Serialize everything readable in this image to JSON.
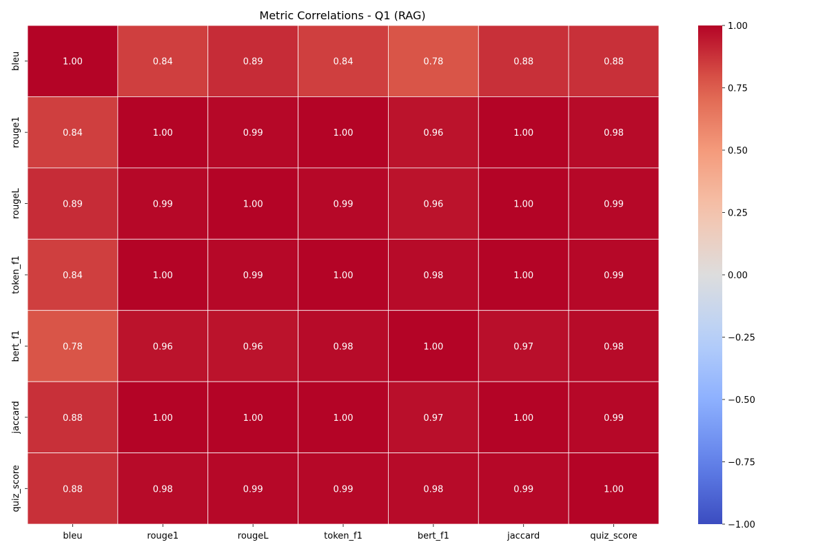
{
  "chart_data": {
    "type": "heatmap",
    "title": "Metric Correlations - Q1 (RAG)",
    "xlabel": "",
    "ylabel": "",
    "x_categories": [
      "bleu",
      "rouge1",
      "rougeL",
      "token_f1",
      "bert_f1",
      "jaccard",
      "quiz_score"
    ],
    "y_categories": [
      "bleu",
      "rouge1",
      "rougeL",
      "token_f1",
      "bert_f1",
      "jaccard",
      "quiz_score"
    ],
    "values": [
      [
        1.0,
        0.84,
        0.89,
        0.84,
        0.78,
        0.88,
        0.88
      ],
      [
        0.84,
        1.0,
        0.99,
        1.0,
        0.96,
        1.0,
        0.98
      ],
      [
        0.89,
        0.99,
        1.0,
        0.99,
        0.96,
        1.0,
        0.99
      ],
      [
        0.84,
        1.0,
        0.99,
        1.0,
        0.98,
        1.0,
        0.99
      ],
      [
        0.78,
        0.96,
        0.96,
        0.98,
        1.0,
        0.97,
        0.98
      ],
      [
        0.88,
        1.0,
        1.0,
        1.0,
        0.97,
        1.0,
        0.99
      ],
      [
        0.88,
        0.98,
        0.99,
        0.99,
        0.98,
        0.99,
        1.0
      ]
    ],
    "value_format": "0.00",
    "colormap": "coolwarm",
    "vmin": -1.0,
    "vmax": 1.0,
    "colorbar_ticks": [
      1.0,
      0.75,
      0.5,
      0.25,
      0.0,
      -0.25,
      -0.5,
      -0.75,
      -1.0
    ],
    "colorbar_tick_labels": [
      "1.00",
      "0.75",
      "0.50",
      "0.25",
      "0.00",
      "−0.25",
      "−0.50",
      "−0.75",
      "−1.00"
    ],
    "annotation_color": "#ffffff",
    "cell_border_color": "#ffffff",
    "grid": false,
    "legend": "colorbar-right"
  }
}
